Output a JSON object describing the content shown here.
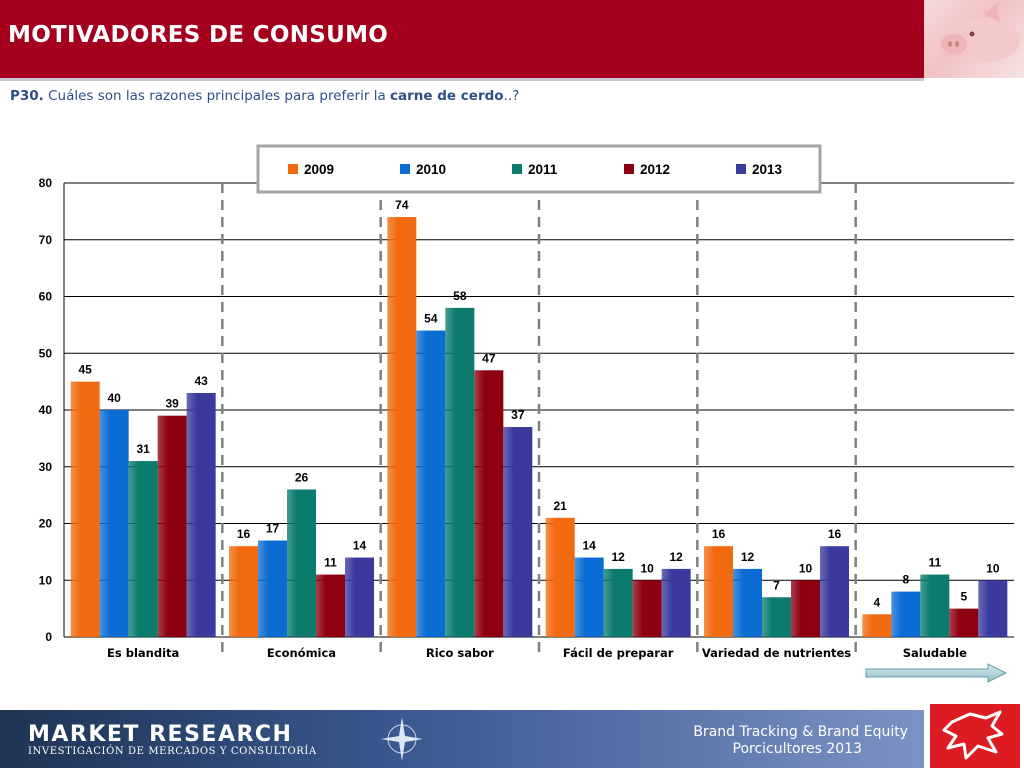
{
  "header": {
    "title": "MOTIVADORES DE CONSUMO"
  },
  "question": {
    "code": "P30.",
    "text_before": "Cuáles son las razones principales para preferir la",
    "emphasis": "carne de cerdo",
    "text_after": "..?"
  },
  "chart_data": {
    "type": "bar",
    "categories": [
      "Es blandita",
      "Económica",
      "Rico sabor",
      "Fácil de preparar",
      "Variedad de nutrientes",
      "Saludable"
    ],
    "series": [
      {
        "name": "2009",
        "color": "#f26a0f",
        "values": [
          45,
          16,
          74,
          21,
          16,
          4
        ]
      },
      {
        "name": "2010",
        "color": "#0b6dd4",
        "values": [
          40,
          17,
          54,
          14,
          12,
          8
        ]
      },
      {
        "name": "2011",
        "color": "#0a7b6c",
        "values": [
          31,
          26,
          58,
          12,
          7,
          11
        ]
      },
      {
        "name": "2012",
        "color": "#8c0012",
        "values": [
          39,
          11,
          47,
          10,
          10,
          5
        ]
      },
      {
        "name": "2013",
        "color": "#3a3a9e",
        "values": [
          43,
          14,
          37,
          12,
          16,
          10
        ]
      }
    ],
    "yticks": [
      "0",
      "10",
      "20",
      "30",
      "40",
      "50",
      "60",
      "70",
      "80"
    ],
    "ylim": [
      0,
      80
    ],
    "grid": true,
    "legend": "top-center",
    "title": "",
    "xlabel": "",
    "ylabel": ""
  },
  "footer": {
    "brand": "MARKET RESEARCH",
    "brand_sub": "INVESTIGACIÓN DE MERCADOS Y CONSULTORÍA",
    "line1": "Brand Tracking & Brand Equity",
    "line2": "Porcicultores 2013"
  }
}
